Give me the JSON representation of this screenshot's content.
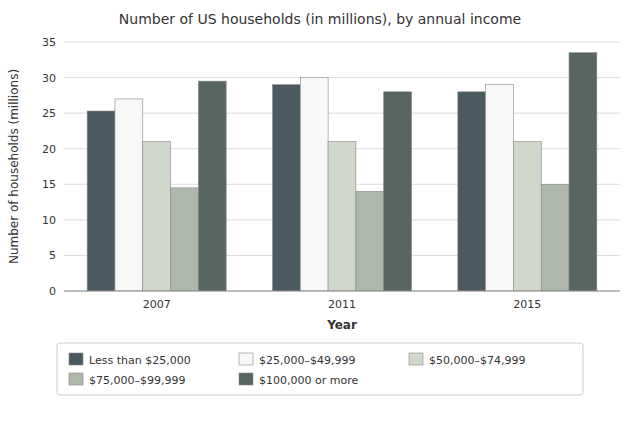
{
  "chart_data": {
    "type": "bar",
    "title": "Number of US households (in millions), by annual income",
    "xlabel": "Year",
    "ylabel": "Number of households (millions)",
    "categories": [
      "2007",
      "2011",
      "2015"
    ],
    "series": [
      {
        "name": "Less than $25,000",
        "color": "#4a5a60",
        "values": [
          25.3,
          29.0,
          28.0
        ]
      },
      {
        "name": "$25,000–$49,999",
        "color": "#f8f8f8",
        "values": [
          27.0,
          30.0,
          29.0
        ]
      },
      {
        "name": "$50,000–$74,999",
        "color": "#d0d8cc",
        "values": [
          21.0,
          21.0,
          21.0
        ]
      },
      {
        "name": "$75,000–$99,999",
        "color": "#adb8aa",
        "values": [
          14.5,
          14.0,
          15.0
        ]
      },
      {
        "name": "$100,000 or more",
        "color": "#576660",
        "values": [
          29.5,
          28.0,
          33.5
        ]
      }
    ],
    "ylim": [
      0,
      35
    ],
    "yticks": [
      0,
      5,
      10,
      15,
      20,
      25,
      30,
      35
    ],
    "grid": true,
    "legend": "bottom"
  }
}
